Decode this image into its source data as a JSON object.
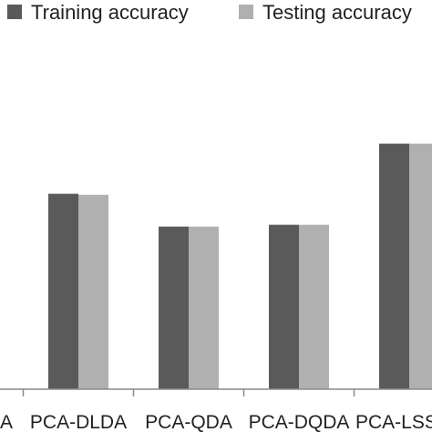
{
  "chart_data": {
    "type": "bar",
    "categories": [
      "A",
      "PCA-DLDA",
      "PCA-QDA",
      "PCA-DQDA",
      "PCA-LSSVM"
    ],
    "visible_category_labels": [
      "A",
      "PCA-DLDA",
      "PCA-QDA",
      "PCA-DQDA",
      "PCA-LSS"
    ],
    "series": [
      {
        "name": "Training accuracy",
        "values": [
          null,
          0.756,
          0.629,
          0.636,
          0.95
        ]
      },
      {
        "name": "Testing accuracy",
        "values": [
          null,
          0.752,
          0.629,
          0.636,
          0.95
        ]
      }
    ],
    "ylim": [
      0,
      1.4
    ],
    "grid": false,
    "legend_position": "top",
    "colors": {
      "training": "#5a5a5a",
      "testing": "#b0b0b0",
      "axis": "#8a8a8a",
      "text": "#222222"
    }
  }
}
